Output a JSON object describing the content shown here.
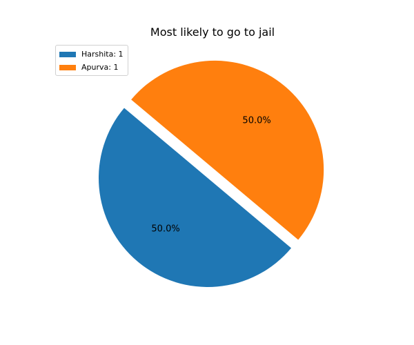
{
  "chart_data": {
    "type": "pie",
    "title": "Most likely to go to jail",
    "categories": [
      "Harshita",
      "Apurva"
    ],
    "values": [
      1,
      1
    ],
    "percent_labels": [
      "50.0%",
      "50.0%"
    ],
    "legend_labels": [
      "Harshita: 1",
      "Apurva: 1"
    ],
    "colors": [
      "#1f77b4",
      "#ff7f0e"
    ],
    "start_angle_deg": 140,
    "explode": [
      0,
      0.1
    ],
    "legend_position": "upper-left"
  }
}
